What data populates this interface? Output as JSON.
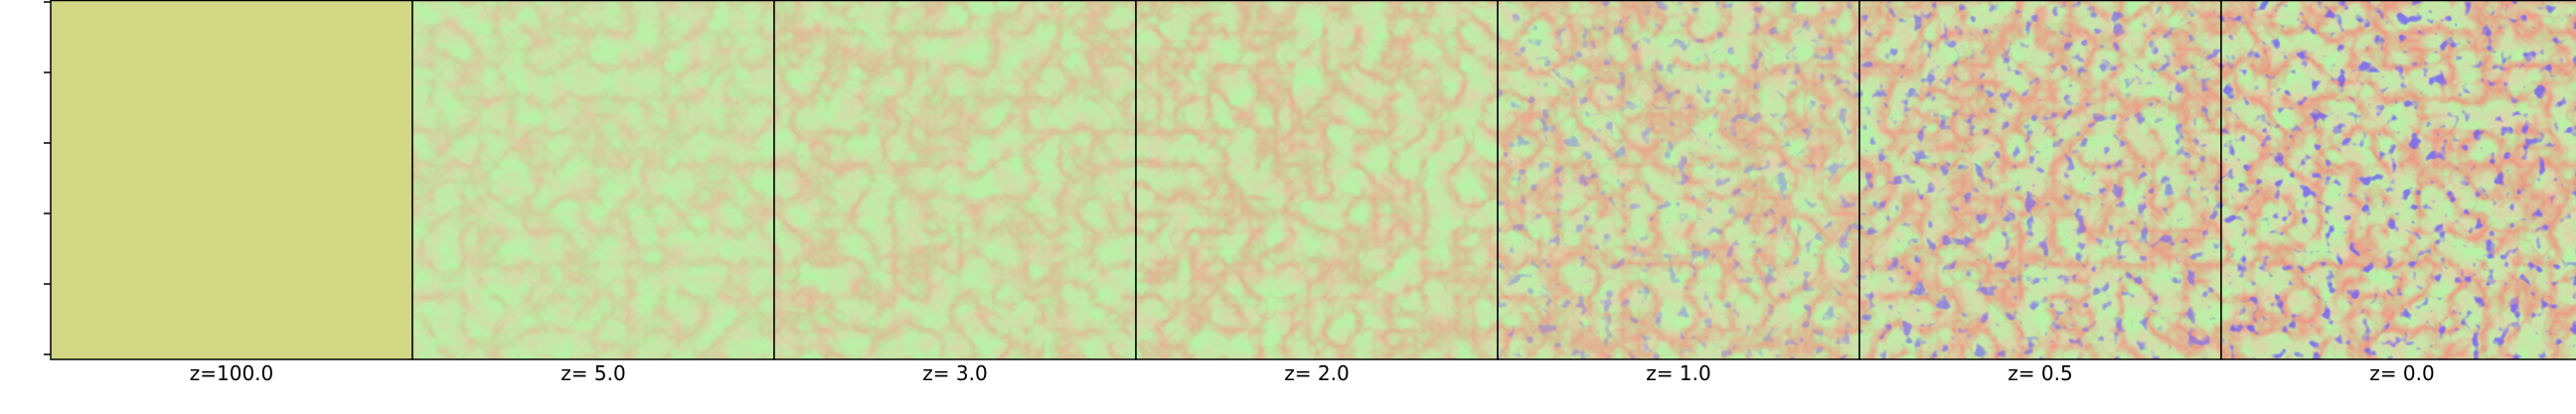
{
  "figure": {
    "colors": {
      "uniform": "#d2d783",
      "void": "#b8f2a7",
      "filament": "#f2b28c",
      "dense": "#e1302a",
      "underdense": "#2a1df2",
      "frame": "#000000"
    },
    "panels": [
      {
        "label": "z=100.0",
        "structure": 0.0
      },
      {
        "label": "z= 5.0",
        "structure": 0.35
      },
      {
        "label": "z= 3.0",
        "structure": 0.5
      },
      {
        "label": "z= 2.0",
        "structure": 0.62
      },
      {
        "label": "z= 1.0",
        "structure": 0.78
      },
      {
        "label": "z= 0.5",
        "structure": 0.9
      },
      {
        "label": "z= 0.0",
        "structure": 1.0
      }
    ]
  }
}
